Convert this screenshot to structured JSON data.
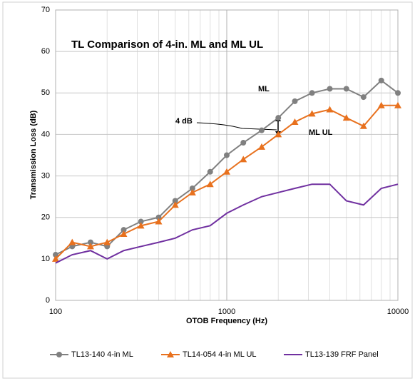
{
  "chart_data": {
    "type": "line",
    "title": "TL Comparison of 4-in. ML and ML UL",
    "x_label": "OTOB Frequency (Hz)",
    "y_label": "Transmission Loss (dB)",
    "x": [
      100,
      125,
      160,
      200,
      250,
      315,
      400,
      500,
      630,
      800,
      1000,
      1250,
      1600,
      2000,
      2500,
      3150,
      4000,
      5000,
      6300,
      8000,
      10000
    ],
    "series": [
      {
        "name": "TL13-140 4-in ML",
        "color": "#808080",
        "marker": "circle",
        "values": [
          11,
          13,
          14,
          13,
          17,
          19,
          20,
          24,
          27,
          31,
          35,
          38,
          41,
          44,
          48,
          50,
          51,
          51,
          49,
          53,
          50
        ]
      },
      {
        "name": "TL14-054 4-in ML UL",
        "color": "#e8711e",
        "marker": "triangle",
        "values": [
          10,
          14,
          13,
          14,
          16,
          18,
          19,
          23,
          26,
          28,
          31,
          34,
          37,
          40,
          43,
          45,
          46,
          44,
          42,
          47,
          47
        ]
      },
      {
        "name": "TL13-139 FRF Panel",
        "color": "#7030a0",
        "marker": "none",
        "values": [
          9,
          11,
          12,
          10,
          12,
          13,
          14,
          15,
          17,
          18,
          21,
          23,
          25,
          26,
          27,
          28,
          28,
          24,
          23,
          27,
          28
        ]
      }
    ],
    "annotations": [
      {
        "text": "ML",
        "color": "#a6a6a6"
      },
      {
        "text": "ML UL",
        "color": "#e8711e"
      },
      {
        "text": "4 dB",
        "color": "#000000"
      }
    ],
    "x_log": true,
    "xlim": [
      100,
      10000
    ],
    "xticks": [
      100,
      1000,
      10000
    ],
    "x_minor_grid": [
      200,
      300,
      400,
      500,
      600,
      700,
      800,
      900,
      2000,
      3000,
      4000,
      5000,
      6000,
      7000,
      8000,
      9000
    ],
    "ylim": [
      0,
      70
    ],
    "yticks": [
      0,
      10,
      20,
      30,
      40,
      50,
      60,
      70
    ],
    "grid": true,
    "legend": "bottom"
  }
}
